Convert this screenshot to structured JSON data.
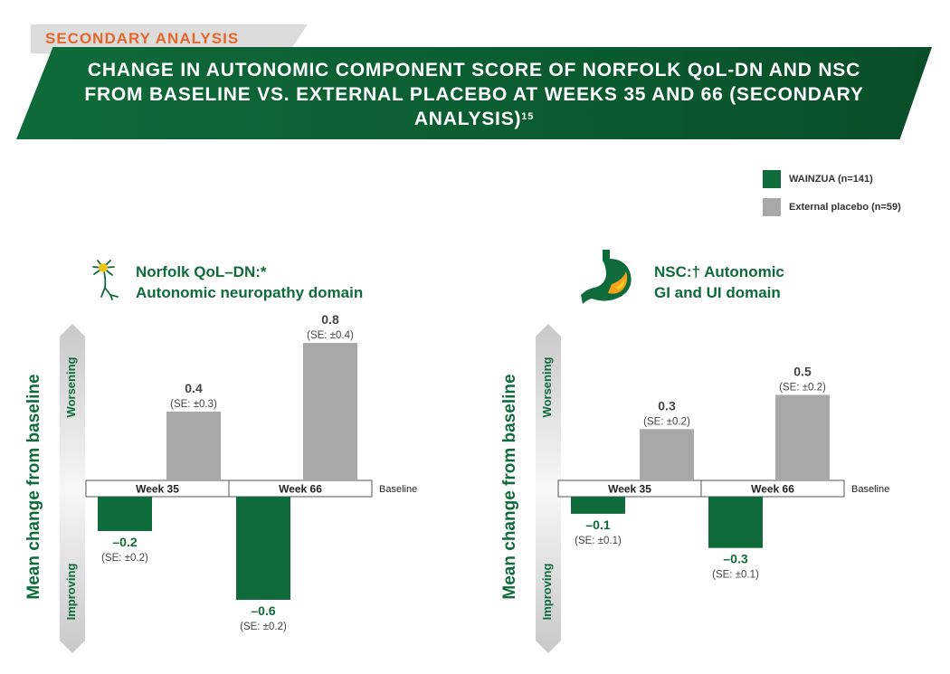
{
  "section_tab": "SECONDARY ANALYSIS",
  "banner": {
    "title": "CHANGE IN AUTONOMIC COMPONENT SCORE OF NORFOLK QoL-DN AND NSC FROM BASELINE VS. EXTERNAL PLACEBO AT WEEKS 35 AND 66 (SECONDARY ANALYSIS)",
    "superscript": "15"
  },
  "legend": [
    {
      "label": "WAINZUA (n=141)",
      "color": "#0f6b3a"
    },
    {
      "label": "External placebo (n=59)",
      "color": "#a8a8a8"
    }
  ],
  "panels": [
    {
      "icon": "neuron-icon",
      "title_line1": "Norfolk QoL–DN:*",
      "title_line2": "Autonomic neuropathy domain"
    },
    {
      "icon": "stomach-icon",
      "title_line1": "NSC:† Autonomic",
      "title_line2": "GI and UI domain"
    }
  ],
  "axis": {
    "ylabel": "Mean change from baseline",
    "up_label": "Worsening",
    "down_label": "Improving",
    "baseline_label": "Baseline"
  },
  "chart_data": [
    {
      "type": "bar",
      "title": "Norfolk QoL–DN:* Autonomic neuropathy domain",
      "ylabel": "Mean change from baseline",
      "categories": [
        "Week 35",
        "Week 66"
      ],
      "ylim": [
        -0.7,
        0.9
      ],
      "grid": false,
      "legend": "top-right",
      "series": [
        {
          "name": "WAINZUA (n=141)",
          "color": "#0f6b3a",
          "values": [
            -0.2,
            -0.6
          ],
          "labels": [
            "–0.2",
            "–0.6"
          ],
          "se": [
            "(SE: ±0.2)",
            "(SE: ±0.2)"
          ]
        },
        {
          "name": "External placebo (n=59)",
          "color": "#a8a8a8",
          "values": [
            0.4,
            0.8
          ],
          "labels": [
            "0.4",
            "0.8"
          ],
          "se": [
            "(SE: ±0.3)",
            "(SE: ±0.4)"
          ]
        }
      ]
    },
    {
      "type": "bar",
      "title": "NSC:† Autonomic GI and UI domain",
      "ylabel": "Mean change from baseline",
      "categories": [
        "Week 35",
        "Week 66"
      ],
      "ylim": [
        -0.35,
        0.55
      ],
      "grid": false,
      "legend": "top-right",
      "series": [
        {
          "name": "WAINZUA (n=141)",
          "color": "#0f6b3a",
          "values": [
            -0.1,
            -0.3
          ],
          "labels": [
            "–0.1",
            "–0.3"
          ],
          "se": [
            "(SE: ±0.1)",
            "(SE: ±0.1)"
          ]
        },
        {
          "name": "External placebo (n=59)",
          "color": "#a8a8a8",
          "values": [
            0.3,
            0.5
          ],
          "labels": [
            "0.3",
            "0.5"
          ],
          "se": [
            "(SE: ±0.2)",
            "(SE: ±0.2)"
          ]
        }
      ]
    }
  ]
}
